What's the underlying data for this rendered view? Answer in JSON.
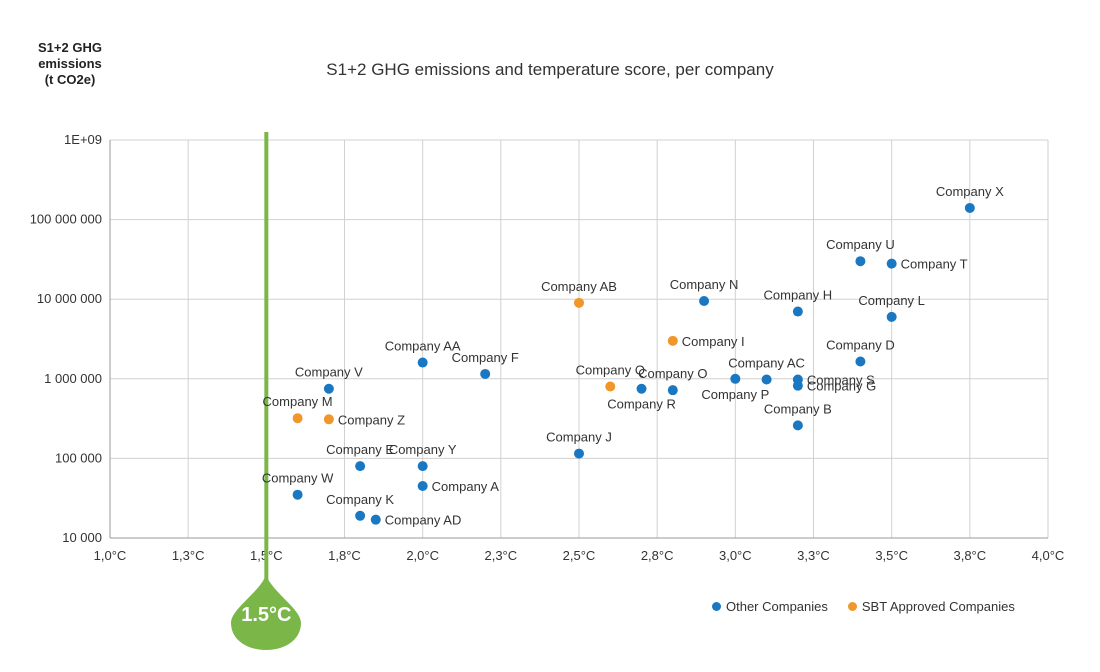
{
  "chart_data": {
    "type": "scatter",
    "title": "S1+2 GHG emissions and temperature score, per company",
    "ylabel_lines": [
      "S1+2 GHG",
      "emissions",
      "(t CO2e)"
    ],
    "xlabel": "",
    "xlim": [
      1.0,
      4.0
    ],
    "ylim": [
      10000,
      1000000000
    ],
    "y_scale": "log",
    "grid": true,
    "x_ticks": [
      {
        "value": 1.0,
        "label": "1,0°C"
      },
      {
        "value": 1.25,
        "label": "1,3°C"
      },
      {
        "value": 1.5,
        "label": "1,5°C"
      },
      {
        "value": 1.75,
        "label": "1,8°C"
      },
      {
        "value": 2.0,
        "label": "2,0°C"
      },
      {
        "value": 2.25,
        "label": "2,3°C"
      },
      {
        "value": 2.5,
        "label": "2,5°C"
      },
      {
        "value": 2.75,
        "label": "2,8°C"
      },
      {
        "value": 3.0,
        "label": "3,0°C"
      },
      {
        "value": 3.25,
        "label": "3,3°C"
      },
      {
        "value": 3.5,
        "label": "3,5°C"
      },
      {
        "value": 3.75,
        "label": "3,8°C"
      },
      {
        "value": 4.0,
        "label": "4,0°C"
      }
    ],
    "y_ticks": [
      {
        "value": 10000,
        "label": "10 000"
      },
      {
        "value": 100000,
        "label": "100 000"
      },
      {
        "value": 1000000,
        "label": "1 000 000"
      },
      {
        "value": 10000000,
        "label": "10 000 000"
      },
      {
        "value": 100000000,
        "label": "100 000 000"
      },
      {
        "value": 1000000000,
        "label": "1E+09"
      }
    ],
    "reference_line": {
      "x": 1.5,
      "label": "1.5°C",
      "color": "#7ab648"
    },
    "legend_position": "bottom-right",
    "series": [
      {
        "name": "Other Companies",
        "color": "#1a78c2",
        "points": [
          {
            "label": "Company X",
            "x": 3.75,
            "y": 140000000,
            "label_pos": "above"
          },
          {
            "label": "Company U",
            "x": 3.4,
            "y": 30000000,
            "label_pos": "above"
          },
          {
            "label": "Company T",
            "x": 3.5,
            "y": 28000000,
            "label_pos": "right"
          },
          {
            "label": "Company N",
            "x": 2.9,
            "y": 9500000,
            "label_pos": "above"
          },
          {
            "label": "Company H",
            "x": 3.2,
            "y": 7000000,
            "label_pos": "above"
          },
          {
            "label": "Company L",
            "x": 3.5,
            "y": 6000000,
            "label_pos": "above"
          },
          {
            "label": "Company D",
            "x": 3.4,
            "y": 1650000,
            "label_pos": "above"
          },
          {
            "label": "Company AA",
            "x": 2.0,
            "y": 1600000,
            "label_pos": "above"
          },
          {
            "label": "Company F",
            "x": 2.2,
            "y": 1150000,
            "label_pos": "above"
          },
          {
            "label": "Company V",
            "x": 1.7,
            "y": 750000,
            "label_pos": "above"
          },
          {
            "label": "Company AC",
            "x": 3.1,
            "y": 980000,
            "label_pos": "above"
          },
          {
            "label": "Company S",
            "x": 3.2,
            "y": 980000,
            "label_pos": "right"
          },
          {
            "label": "Company G",
            "x": 3.2,
            "y": 820000,
            "label_pos": "right"
          },
          {
            "label": "Company O",
            "x": 2.8,
            "y": 720000,
            "label_pos": "above"
          },
          {
            "label": "Company P",
            "x": 3.0,
            "y": 1000000,
            "label_pos": "below"
          },
          {
            "label": "Company R",
            "x": 2.7,
            "y": 750000,
            "label_pos": "below"
          },
          {
            "label": "Company B",
            "x": 3.2,
            "y": 260000,
            "label_pos": "above"
          },
          {
            "label": "Company J",
            "x": 2.5,
            "y": 115000,
            "label_pos": "above"
          },
          {
            "label": "Company E",
            "x": 1.8,
            "y": 80000,
            "label_pos": "above"
          },
          {
            "label": "Company Y",
            "x": 2.0,
            "y": 80000,
            "label_pos": "above"
          },
          {
            "label": "Company A",
            "x": 2.0,
            "y": 45000,
            "label_pos": "right"
          },
          {
            "label": "Company W",
            "x": 1.6,
            "y": 35000,
            "label_pos": "above"
          },
          {
            "label": "Company K",
            "x": 1.8,
            "y": 19000,
            "label_pos": "above"
          },
          {
            "label": "Company AD",
            "x": 1.85,
            "y": 17000,
            "label_pos": "right"
          }
        ]
      },
      {
        "name": "SBT Approved Companies",
        "color": "#f0962a",
        "points": [
          {
            "label": "Company AB",
            "x": 2.5,
            "y": 9000000,
            "label_pos": "above"
          },
          {
            "label": "Company I",
            "x": 2.8,
            "y": 3000000,
            "label_pos": "right"
          },
          {
            "label": "Company Q",
            "x": 2.6,
            "y": 800000,
            "label_pos": "above"
          },
          {
            "label": "Company M",
            "x": 1.6,
            "y": 320000,
            "label_pos": "above"
          },
          {
            "label": "Company Z",
            "x": 1.7,
            "y": 310000,
            "label_pos": "right"
          }
        ]
      }
    ]
  }
}
